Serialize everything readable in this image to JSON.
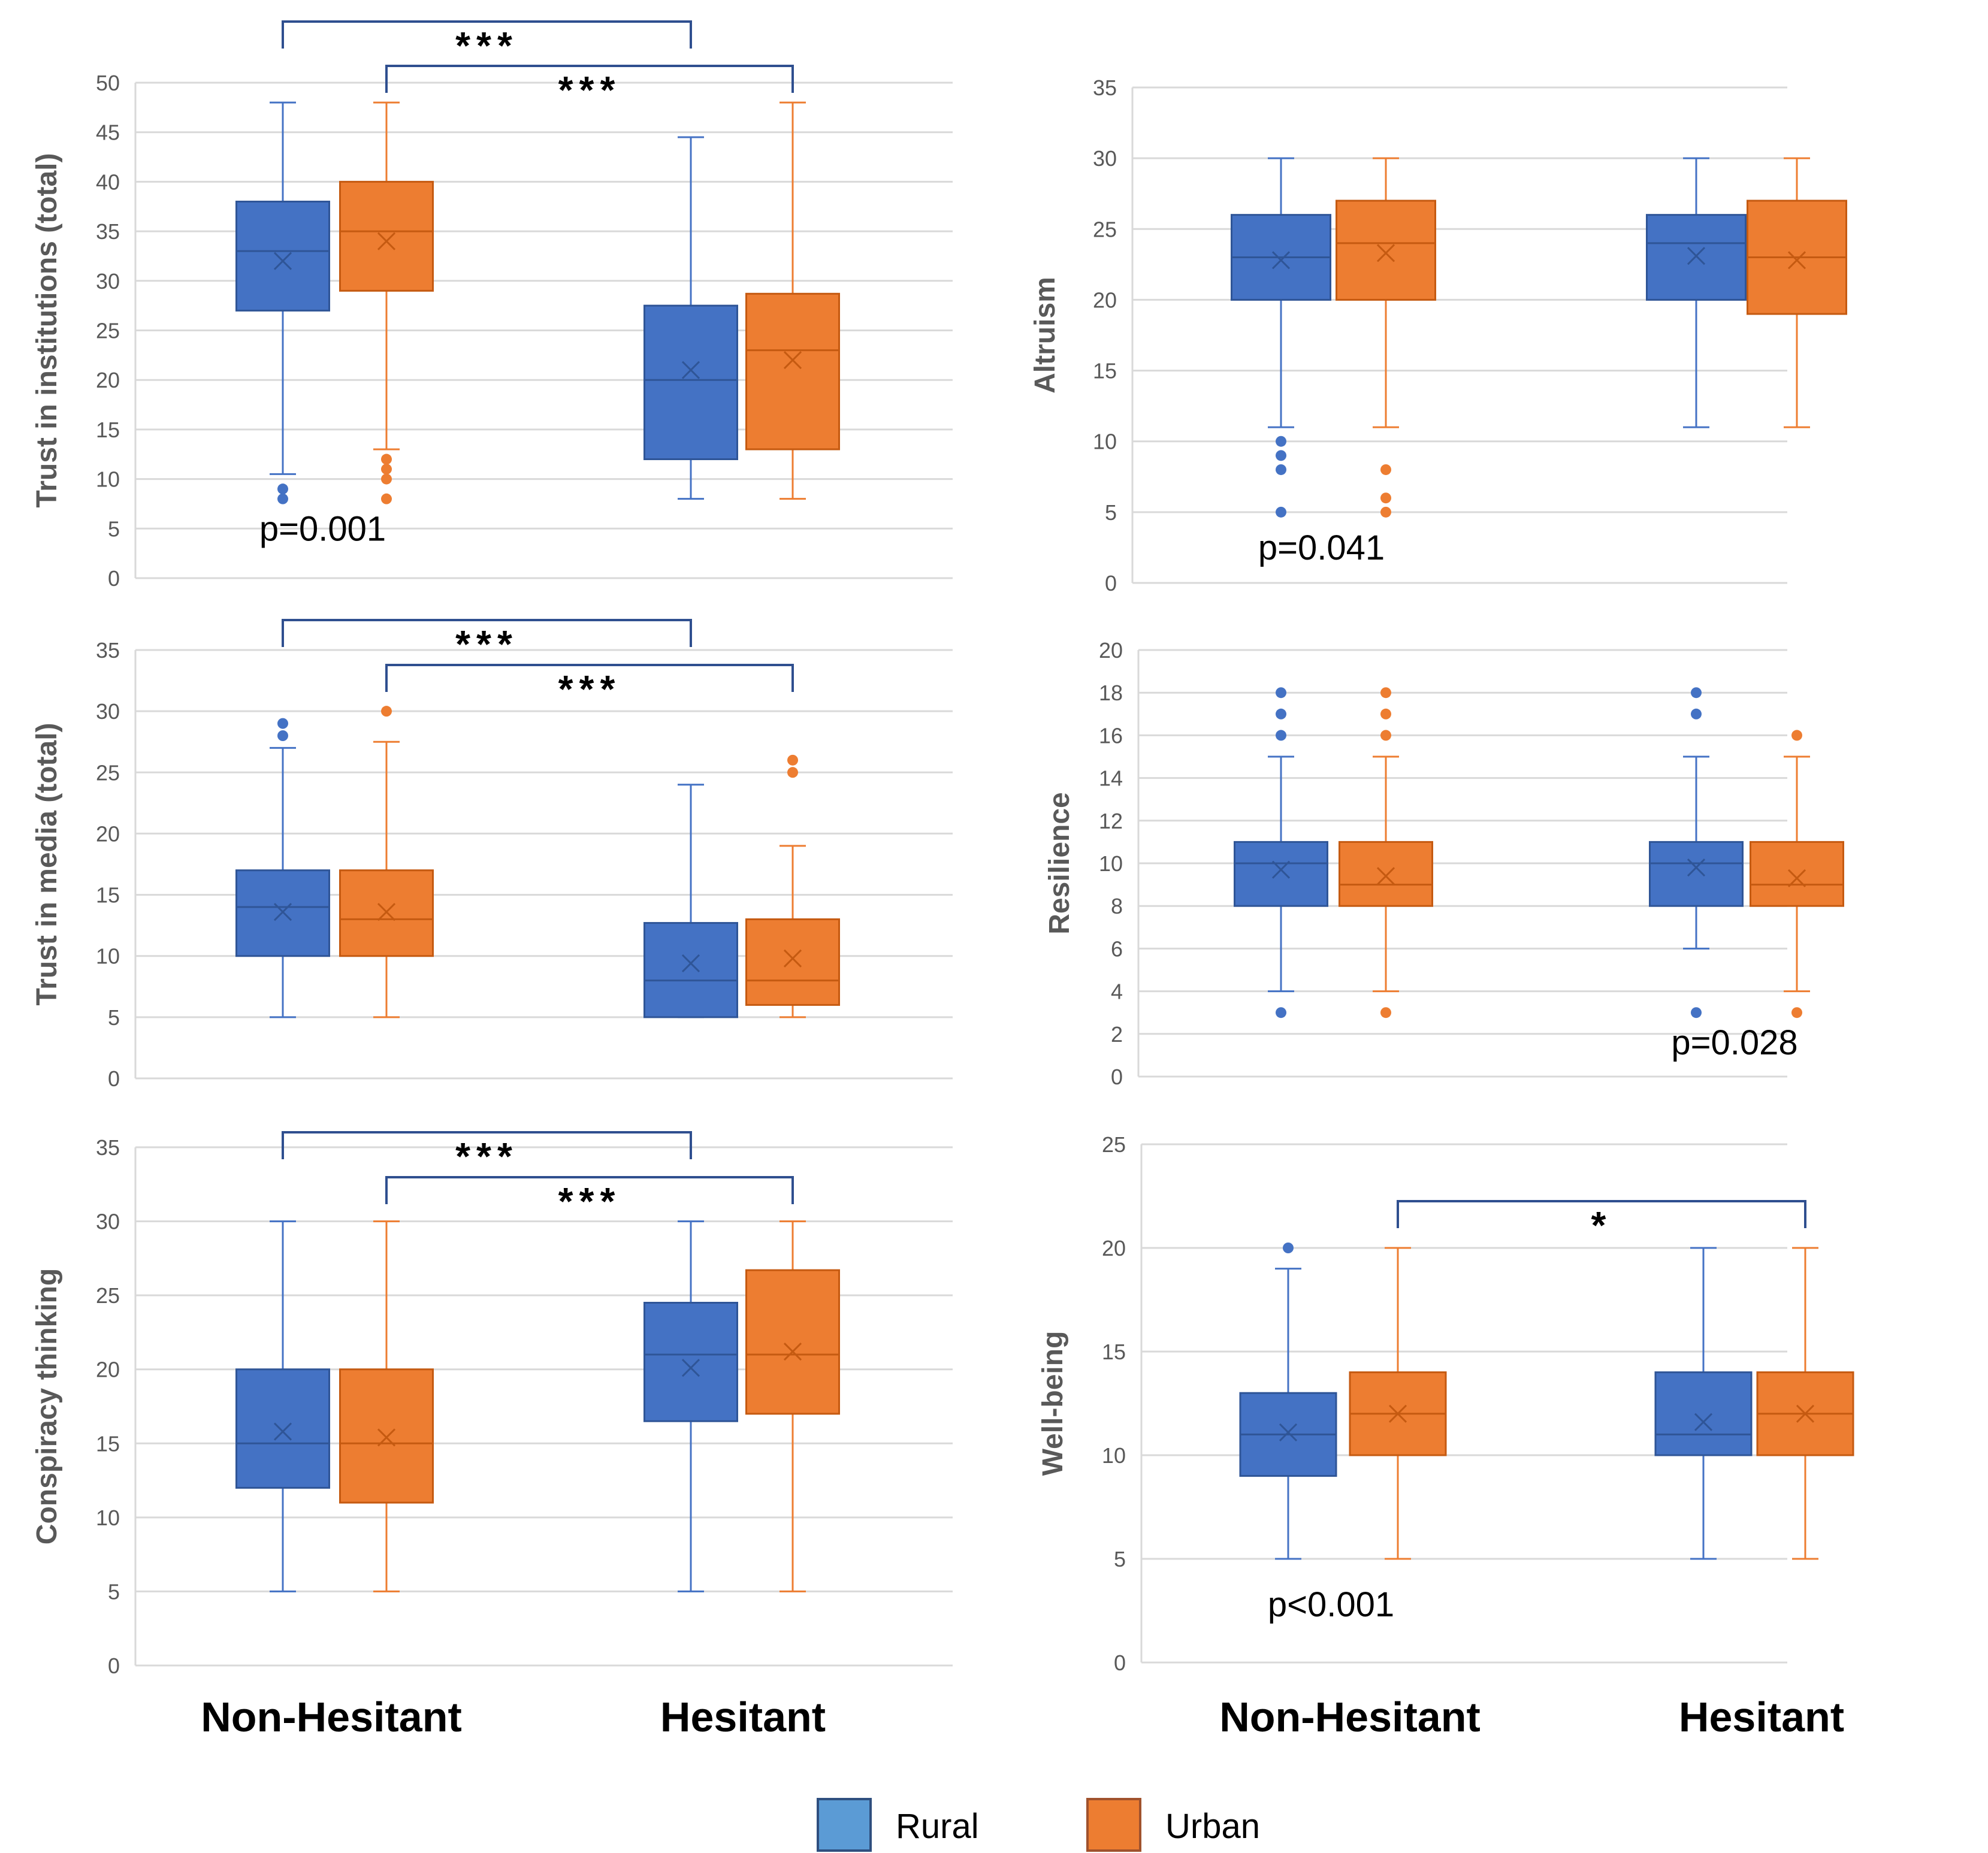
{
  "x_categories": [
    "Non-Hesitant",
    "Hesitant"
  ],
  "legend": [
    {
      "name": "Rural",
      "color": "#4472C4"
    },
    {
      "name": "Urban",
      "color": "#ED7D31"
    }
  ],
  "colors": {
    "rural_fill": "#4472C4",
    "rural_legend": "#5B9BD5",
    "urban_fill": "#ED7D31",
    "grid": "#D9D9D9",
    "axis_text": "#595959",
    "bracket": "#2F4F8F"
  },
  "chart_data": [
    {
      "id": "trust-institutions",
      "type": "boxplot",
      "ylabel": "Trust in institutions (total)",
      "ylim": [
        0,
        50
      ],
      "ytick_step": 5,
      "categories": [
        "Non-Hesitant",
        "Hesitant"
      ],
      "p_label": "p=0.001",
      "p_anchor": {
        "category": 0,
        "y": 5
      },
      "brackets": [
        {
          "series": "Rural",
          "label": "***"
        },
        {
          "series": "Urban",
          "label": "***"
        }
      ],
      "series": [
        {
          "name": "Rural",
          "boxes": [
            {
              "min": 10.5,
              "q1": 27,
              "median": 33,
              "q3": 38,
              "max": 48,
              "mean": 32,
              "outliers": [
                9,
                8
              ]
            },
            {
              "min": 8,
              "q1": 12,
              "median": 20,
              "q3": 27.5,
              "max": 44.5,
              "mean": 21,
              "outliers": []
            }
          ]
        },
        {
          "name": "Urban",
          "boxes": [
            {
              "min": 13,
              "q1": 29,
              "median": 35,
              "q3": 40,
              "max": 48,
              "mean": 34,
              "outliers": [
                12,
                11,
                10,
                8
              ]
            },
            {
              "min": 8,
              "q1": 13,
              "median": 23,
              "q3": 28.7,
              "max": 48,
              "mean": 22,
              "outliers": []
            }
          ]
        }
      ]
    },
    {
      "id": "altruism",
      "type": "boxplot",
      "ylabel": "Altruism",
      "ylim": [
        0,
        35
      ],
      "ytick_step": 5,
      "categories": [
        "Non-Hesitant",
        "Hesitant"
      ],
      "p_label": "p=0.041",
      "p_anchor": {
        "category": 0,
        "y": 2.5
      },
      "brackets": [],
      "series": [
        {
          "name": "Rural",
          "boxes": [
            {
              "min": 11,
              "q1": 20,
              "median": 23,
              "q3": 26,
              "max": 30,
              "mean": 22.8,
              "outliers": [
                10,
                9,
                8,
                5
              ]
            },
            {
              "min": 11,
              "q1": 20,
              "median": 24,
              "q3": 26,
              "max": 30,
              "mean": 23.1,
              "outliers": []
            }
          ]
        },
        {
          "name": "Urban",
          "boxes": [
            {
              "min": 11,
              "q1": 20,
              "median": 24,
              "q3": 27,
              "max": 30,
              "mean": 23.3,
              "outliers": [
                8,
                6,
                5
              ]
            },
            {
              "min": 11,
              "q1": 19,
              "median": 23,
              "q3": 27,
              "max": 30,
              "mean": 22.8,
              "outliers": []
            }
          ]
        }
      ]
    },
    {
      "id": "trust-media",
      "type": "boxplot",
      "ylabel": "Trust in media (total)",
      "ylim": [
        0,
        35
      ],
      "ytick_step": 5,
      "categories": [
        "Non-Hesitant",
        "Hesitant"
      ],
      "p_label": "",
      "brackets": [
        {
          "series": "Rural",
          "label": "***"
        },
        {
          "series": "Urban",
          "label": "***"
        }
      ],
      "series": [
        {
          "name": "Rural",
          "boxes": [
            {
              "min": 5,
              "q1": 10,
              "median": 14,
              "q3": 17,
              "max": 27,
              "mean": 13.6,
              "outliers": [
                29,
                28
              ]
            },
            {
              "min": 5,
              "q1": 5,
              "median": 8,
              "q3": 12.7,
              "max": 24,
              "mean": 9.4,
              "outliers": []
            }
          ]
        },
        {
          "name": "Urban",
          "boxes": [
            {
              "min": 5,
              "q1": 10,
              "median": 13,
              "q3": 17,
              "max": 27.5,
              "mean": 13.6,
              "outliers": [
                30
              ]
            },
            {
              "min": 5,
              "q1": 6,
              "median": 8,
              "q3": 13,
              "max": 19,
              "mean": 9.8,
              "outliers": [
                26,
                25
              ]
            }
          ]
        }
      ]
    },
    {
      "id": "resilience",
      "type": "boxplot",
      "ylabel": "Resilience",
      "ylim": [
        0,
        20
      ],
      "ytick_step": 2,
      "categories": [
        "Non-Hesitant",
        "Hesitant"
      ],
      "p_label": "p=0.028",
      "p_anchor": {
        "category": 1,
        "y": 1.6
      },
      "brackets": [],
      "series": [
        {
          "name": "Rural",
          "boxes": [
            {
              "min": 4,
              "q1": 8,
              "median": 10,
              "q3": 11,
              "max": 15,
              "mean": 9.7,
              "outliers": [
                18,
                17,
                16,
                3
              ]
            },
            {
              "min": 6,
              "q1": 8,
              "median": 10,
              "q3": 11,
              "max": 15,
              "mean": 9.8,
              "outliers": [
                18,
                17,
                3
              ]
            }
          ]
        },
        {
          "name": "Urban",
          "boxes": [
            {
              "min": 4,
              "q1": 8,
              "median": 9,
              "q3": 11,
              "max": 15,
              "mean": 9.4,
              "outliers": [
                18,
                17,
                16,
                3
              ]
            },
            {
              "min": 4,
              "q1": 8,
              "median": 9,
              "q3": 11,
              "max": 15,
              "mean": 9.3,
              "outliers": [
                16,
                3
              ]
            }
          ]
        }
      ]
    },
    {
      "id": "conspiracy-thinking",
      "type": "boxplot",
      "ylabel": "Conspiracy thinking",
      "ylim": [
        0,
        35
      ],
      "ytick_step": 5,
      "categories": [
        "Non-Hesitant",
        "Hesitant"
      ],
      "p_label": "",
      "brackets": [
        {
          "series": "Rural",
          "label": "***"
        },
        {
          "series": "Urban",
          "label": "***"
        }
      ],
      "series": [
        {
          "name": "Rural",
          "boxes": [
            {
              "min": 5,
              "q1": 12,
              "median": 15,
              "q3": 20,
              "max": 30,
              "mean": 15.8,
              "outliers": []
            },
            {
              "min": 5,
              "q1": 16.5,
              "median": 21,
              "q3": 24.5,
              "max": 30,
              "mean": 20.1,
              "outliers": []
            }
          ]
        },
        {
          "name": "Urban",
          "boxes": [
            {
              "min": 5,
              "q1": 11,
              "median": 15,
              "q3": 20,
              "max": 30,
              "mean": 15.4,
              "outliers": []
            },
            {
              "min": 5,
              "q1": 17,
              "median": 21,
              "q3": 26.7,
              "max": 30,
              "mean": 21.2,
              "outliers": []
            }
          ]
        }
      ]
    },
    {
      "id": "well-being",
      "type": "boxplot",
      "ylabel": "Well-being",
      "ylim": [
        0,
        25
      ],
      "ytick_step": 5,
      "categories": [
        "Non-Hesitant",
        "Hesitant"
      ],
      "p_label": "p<0.001",
      "p_anchor": {
        "category": 0,
        "y": 2.8
      },
      "brackets": [
        {
          "series": "Urban",
          "label": "*"
        }
      ],
      "series": [
        {
          "name": "Rural",
          "boxes": [
            {
              "min": 5,
              "q1": 9,
              "median": 11,
              "q3": 13,
              "max": 19,
              "mean": 11.1,
              "outliers": [
                20
              ]
            },
            {
              "min": 5,
              "q1": 10,
              "median": 11,
              "q3": 14,
              "max": 20,
              "mean": 11.6,
              "outliers": []
            }
          ]
        },
        {
          "name": "Urban",
          "boxes": [
            {
              "min": 5,
              "q1": 10,
              "median": 12,
              "q3": 14,
              "max": 20,
              "mean": 12,
              "outliers": []
            },
            {
              "min": 5,
              "q1": 10,
              "median": 12,
              "q3": 14,
              "max": 20,
              "mean": 12,
              "outliers": []
            }
          ]
        }
      ]
    }
  ]
}
